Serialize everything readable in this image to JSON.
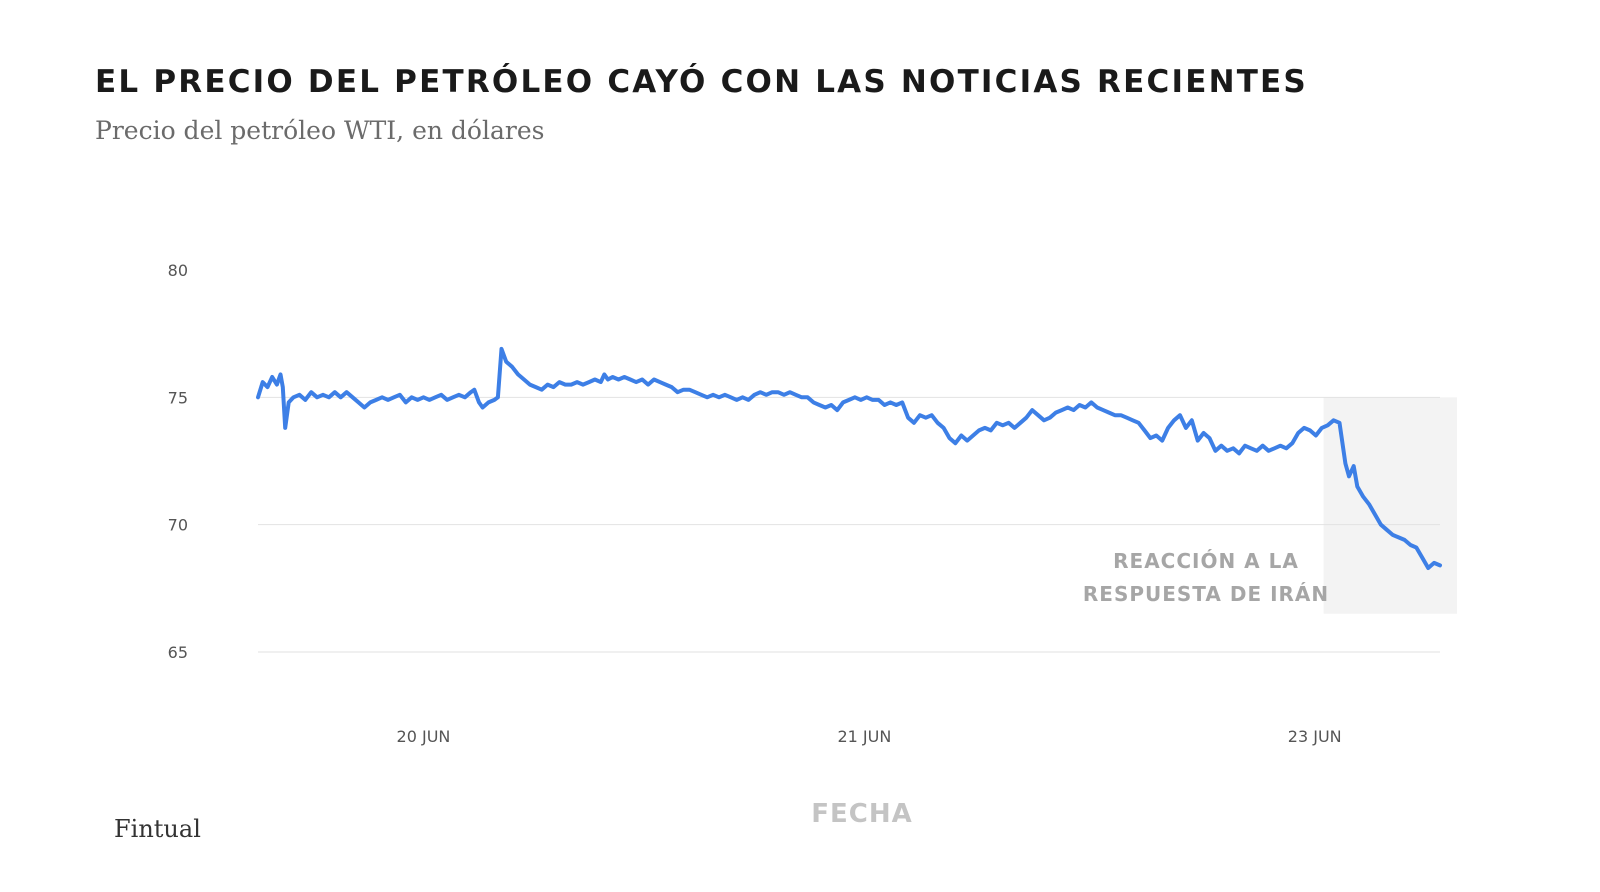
{
  "title": "EL PRECIO DEL PETRÓLEO CAYÓ CON LAS NOTICIAS RECIENTES",
  "subtitle": "Precio del petróleo WTI, en dólares",
  "source": "Fintual",
  "chart_data": {
    "type": "line",
    "title": "EL PRECIO DEL PETRÓLEO CAYÓ CON LAS NOTICIAS RECIENTES",
    "subtitle": "Precio del petróleo WTI, en dólares",
    "xlabel": "FECHA",
    "ylabel": "",
    "ylim": [
      65,
      80
    ],
    "yticks": [
      80,
      75,
      70,
      65
    ],
    "grid": true,
    "line_color": "#3d7fe6",
    "x_ticks": [
      {
        "label": "20 JUN",
        "t": 0.14
      },
      {
        "label": "21 JUN",
        "t": 0.513
      },
      {
        "label": "23 JUN",
        "t": 0.894
      }
    ],
    "annotation": {
      "lines": [
        "REACCIÓN A LA",
        "RESPUESTA DE IRÁN"
      ],
      "shaded_from_t": 0.91,
      "shaded_y": [
        66.5,
        75
      ]
    },
    "series": [
      {
        "points": [
          [
            0.0,
            75.0
          ],
          [
            0.004,
            75.6
          ],
          [
            0.008,
            75.4
          ],
          [
            0.012,
            75.8
          ],
          [
            0.016,
            75.5
          ],
          [
            0.019,
            75.9
          ],
          [
            0.021,
            75.4
          ],
          [
            0.023,
            73.8
          ],
          [
            0.026,
            74.8
          ],
          [
            0.03,
            75.0
          ],
          [
            0.035,
            75.1
          ],
          [
            0.04,
            74.9
          ],
          [
            0.045,
            75.2
          ],
          [
            0.05,
            75.0
          ],
          [
            0.055,
            75.1
          ],
          [
            0.06,
            75.0
          ],
          [
            0.065,
            75.2
          ],
          [
            0.07,
            75.0
          ],
          [
            0.075,
            75.2
          ],
          [
            0.08,
            75.0
          ],
          [
            0.085,
            74.8
          ],
          [
            0.09,
            74.6
          ],
          [
            0.095,
            74.8
          ],
          [
            0.1,
            74.9
          ],
          [
            0.105,
            75.0
          ],
          [
            0.11,
            74.9
          ],
          [
            0.115,
            75.0
          ],
          [
            0.12,
            75.1
          ],
          [
            0.125,
            74.8
          ],
          [
            0.13,
            75.0
          ],
          [
            0.135,
            74.9
          ],
          [
            0.14,
            75.0
          ],
          [
            0.145,
            74.9
          ],
          [
            0.15,
            75.0
          ],
          [
            0.155,
            75.1
          ],
          [
            0.16,
            74.9
          ],
          [
            0.165,
            75.0
          ],
          [
            0.17,
            75.1
          ],
          [
            0.175,
            75.0
          ],
          [
            0.18,
            75.2
          ],
          [
            0.183,
            75.3
          ],
          [
            0.187,
            74.8
          ],
          [
            0.19,
            74.6
          ],
          [
            0.195,
            74.8
          ],
          [
            0.2,
            74.9
          ],
          [
            0.203,
            75.0
          ],
          [
            0.206,
            76.9
          ],
          [
            0.21,
            76.4
          ],
          [
            0.215,
            76.2
          ],
          [
            0.22,
            75.9
          ],
          [
            0.225,
            75.7
          ],
          [
            0.23,
            75.5
          ],
          [
            0.235,
            75.4
          ],
          [
            0.24,
            75.3
          ],
          [
            0.245,
            75.5
          ],
          [
            0.25,
            75.4
          ],
          [
            0.255,
            75.6
          ],
          [
            0.26,
            75.5
          ],
          [
            0.265,
            75.5
          ],
          [
            0.27,
            75.6
          ],
          [
            0.275,
            75.5
          ],
          [
            0.28,
            75.6
          ],
          [
            0.285,
            75.7
          ],
          [
            0.29,
            75.6
          ],
          [
            0.293,
            75.9
          ],
          [
            0.296,
            75.7
          ],
          [
            0.3,
            75.8
          ],
          [
            0.305,
            75.7
          ],
          [
            0.31,
            75.8
          ],
          [
            0.315,
            75.7
          ],
          [
            0.32,
            75.6
          ],
          [
            0.325,
            75.7
          ],
          [
            0.33,
            75.5
          ],
          [
            0.335,
            75.7
          ],
          [
            0.34,
            75.6
          ],
          [
            0.345,
            75.5
          ],
          [
            0.35,
            75.4
          ],
          [
            0.355,
            75.2
          ],
          [
            0.36,
            75.3
          ],
          [
            0.365,
            75.3
          ],
          [
            0.37,
            75.2
          ],
          [
            0.375,
            75.1
          ],
          [
            0.38,
            75.0
          ],
          [
            0.385,
            75.1
          ],
          [
            0.39,
            75.0
          ],
          [
            0.395,
            75.1
          ],
          [
            0.4,
            75.0
          ],
          [
            0.405,
            74.9
          ],
          [
            0.41,
            75.0
          ],
          [
            0.415,
            74.9
          ],
          [
            0.42,
            75.1
          ],
          [
            0.425,
            75.2
          ],
          [
            0.43,
            75.1
          ],
          [
            0.435,
            75.2
          ],
          [
            0.44,
            75.2
          ],
          [
            0.445,
            75.1
          ],
          [
            0.45,
            75.2
          ],
          [
            0.455,
            75.1
          ],
          [
            0.46,
            75.0
          ],
          [
            0.465,
            75.0
          ],
          [
            0.47,
            74.8
          ],
          [
            0.475,
            74.7
          ],
          [
            0.48,
            74.6
          ],
          [
            0.485,
            74.7
          ],
          [
            0.49,
            74.5
          ],
          [
            0.495,
            74.8
          ],
          [
            0.5,
            74.9
          ],
          [
            0.505,
            75.0
          ],
          [
            0.51,
            74.9
          ],
          [
            0.515,
            75.0
          ],
          [
            0.52,
            74.9
          ],
          [
            0.525,
            74.9
          ],
          [
            0.53,
            74.7
          ],
          [
            0.535,
            74.8
          ],
          [
            0.54,
            74.7
          ],
          [
            0.545,
            74.8
          ],
          [
            0.55,
            74.2
          ],
          [
            0.555,
            74.0
          ],
          [
            0.56,
            74.3
          ],
          [
            0.565,
            74.2
          ],
          [
            0.57,
            74.3
          ],
          [
            0.575,
            74.0
          ],
          [
            0.58,
            73.8
          ],
          [
            0.585,
            73.4
          ],
          [
            0.59,
            73.2
          ],
          [
            0.595,
            73.5
          ],
          [
            0.6,
            73.3
          ],
          [
            0.605,
            73.5
          ],
          [
            0.61,
            73.7
          ],
          [
            0.615,
            73.8
          ],
          [
            0.62,
            73.7
          ],
          [
            0.625,
            74.0
          ],
          [
            0.63,
            73.9
          ],
          [
            0.635,
            74.0
          ],
          [
            0.64,
            73.8
          ],
          [
            0.645,
            74.0
          ],
          [
            0.65,
            74.2
          ],
          [
            0.655,
            74.5
          ],
          [
            0.66,
            74.3
          ],
          [
            0.665,
            74.1
          ],
          [
            0.67,
            74.2
          ],
          [
            0.675,
            74.4
          ],
          [
            0.68,
            74.5
          ],
          [
            0.685,
            74.6
          ],
          [
            0.69,
            74.5
          ],
          [
            0.695,
            74.7
          ],
          [
            0.7,
            74.6
          ],
          [
            0.705,
            74.8
          ],
          [
            0.71,
            74.6
          ],
          [
            0.715,
            74.5
          ],
          [
            0.72,
            74.4
          ],
          [
            0.725,
            74.3
          ],
          [
            0.73,
            74.3
          ],
          [
            0.735,
            74.2
          ],
          [
            0.74,
            74.1
          ],
          [
            0.745,
            74.0
          ],
          [
            0.75,
            73.7
          ],
          [
            0.755,
            73.4
          ],
          [
            0.76,
            73.5
          ],
          [
            0.765,
            73.3
          ],
          [
            0.77,
            73.8
          ],
          [
            0.775,
            74.1
          ],
          [
            0.78,
            74.3
          ],
          [
            0.785,
            73.8
          ],
          [
            0.79,
            74.1
          ],
          [
            0.795,
            73.3
          ],
          [
            0.8,
            73.6
          ],
          [
            0.805,
            73.4
          ],
          [
            0.81,
            72.9
          ],
          [
            0.815,
            73.1
          ],
          [
            0.82,
            72.9
          ],
          [
            0.825,
            73.0
          ],
          [
            0.83,
            72.8
          ],
          [
            0.835,
            73.1
          ],
          [
            0.84,
            73.0
          ],
          [
            0.845,
            72.9
          ],
          [
            0.85,
            73.1
          ],
          [
            0.855,
            72.9
          ],
          [
            0.86,
            73.0
          ],
          [
            0.865,
            73.1
          ],
          [
            0.87,
            73.0
          ],
          [
            0.875,
            73.2
          ],
          [
            0.88,
            73.6
          ],
          [
            0.885,
            73.8
          ],
          [
            0.89,
            73.7
          ],
          [
            0.895,
            73.5
          ],
          [
            0.9,
            73.8
          ],
          [
            0.905,
            73.9
          ],
          [
            0.91,
            74.1
          ],
          [
            0.915,
            74.0
          ],
          [
            0.92,
            72.4
          ],
          [
            0.923,
            71.9
          ],
          [
            0.927,
            72.3
          ],
          [
            0.93,
            71.5
          ],
          [
            0.935,
            71.1
          ],
          [
            0.94,
            70.8
          ],
          [
            0.945,
            70.4
          ],
          [
            0.95,
            70.0
          ],
          [
            0.955,
            69.8
          ],
          [
            0.96,
            69.6
          ],
          [
            0.965,
            69.5
          ],
          [
            0.97,
            69.4
          ],
          [
            0.975,
            69.2
          ],
          [
            0.98,
            69.1
          ],
          [
            0.985,
            68.7
          ],
          [
            0.99,
            68.3
          ],
          [
            0.995,
            68.5
          ],
          [
            1.0,
            68.4
          ]
        ]
      }
    ]
  }
}
